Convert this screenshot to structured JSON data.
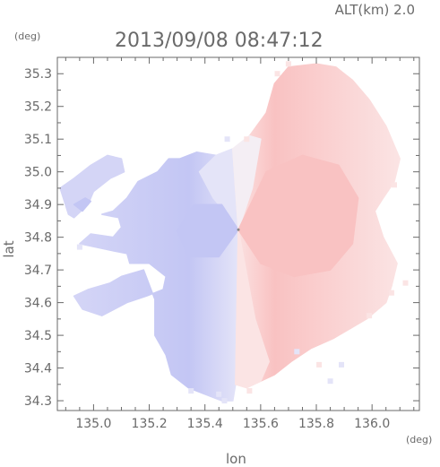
{
  "header": {
    "altitude_label": "ALT(km) 2.0",
    "timestamp": "2013/09/08 08:47:12"
  },
  "axes": {
    "x_label": "lon",
    "y_label": "lat",
    "x_unit": "(deg)",
    "y_unit": "(deg)",
    "x_range": [
      134.87,
      136.17
    ],
    "y_range": [
      34.27,
      35.35
    ],
    "x_ticks": [
      {
        "value": 135.0,
        "label": "135.0"
      },
      {
        "value": 135.2,
        "label": "135.2"
      },
      {
        "value": 135.4,
        "label": "135.4"
      },
      {
        "value": 135.6,
        "label": "135.6"
      },
      {
        "value": 135.8,
        "label": "135.8"
      },
      {
        "value": 136.0,
        "label": "136.0"
      }
    ],
    "y_ticks": [
      {
        "value": 34.3,
        "label": "34.3"
      },
      {
        "value": 34.4,
        "label": "34.4"
      },
      {
        "value": 34.5,
        "label": "34.5"
      },
      {
        "value": 34.6,
        "label": "34.6"
      },
      {
        "value": 34.7,
        "label": "34.7"
      },
      {
        "value": 34.8,
        "label": "34.8"
      },
      {
        "value": 34.9,
        "label": "34.9"
      },
      {
        "value": 35.0,
        "label": "35.0"
      },
      {
        "value": 35.1,
        "label": "35.1"
      },
      {
        "value": 35.2,
        "label": "35.2"
      },
      {
        "value": 35.3,
        "label": "35.3"
      }
    ],
    "minor_tick_step": 0.05
  },
  "radar": {
    "center": {
      "lon": 135.52,
      "lat": 34.823
    },
    "colors": {
      "approaching_strong": "#c3c6f4",
      "approaching_weak": "#e4e4f8",
      "receding_strong": "#f9c2c2",
      "receding_weak": "#fbe4e4",
      "axis": "#6a6a6a"
    },
    "west_region": [
      [
        135.5,
        35.07
      ],
      [
        135.44,
        35.05
      ],
      [
        135.37,
        35.06
      ],
      [
        135.31,
        35.04
      ],
      [
        135.27,
        35.04
      ],
      [
        135.23,
        35.0
      ],
      [
        135.16,
        34.97
      ],
      [
        135.12,
        34.92
      ],
      [
        135.07,
        34.88
      ],
      [
        135.03,
        34.87
      ],
      [
        135.09,
        34.86
      ],
      [
        135.1,
        34.83
      ],
      [
        135.07,
        34.8
      ],
      [
        134.99,
        34.81
      ],
      [
        134.95,
        34.78
      ],
      [
        135.06,
        34.76
      ],
      [
        135.12,
        34.75
      ],
      [
        135.13,
        34.72
      ],
      [
        135.2,
        34.72
      ],
      [
        135.26,
        34.68
      ],
      [
        135.25,
        34.64
      ],
      [
        135.19,
        34.62
      ],
      [
        135.12,
        34.6
      ],
      [
        135.03,
        34.56
      ],
      [
        134.96,
        34.58
      ],
      [
        134.93,
        34.62
      ],
      [
        134.98,
        34.64
      ],
      [
        135.06,
        34.66
      ],
      [
        135.1,
        34.68
      ],
      [
        135.18,
        34.7
      ],
      [
        135.22,
        34.61
      ],
      [
        135.22,
        34.5
      ],
      [
        135.26,
        34.44
      ],
      [
        135.28,
        34.38
      ],
      [
        135.34,
        34.34
      ],
      [
        135.4,
        34.32
      ],
      [
        135.46,
        34.3
      ],
      [
        135.5,
        34.3
      ],
      [
        135.51,
        34.35
      ],
      [
        135.52,
        34.823
      ]
    ],
    "west_region_upper_shade": [
      [
        135.52,
        34.823
      ],
      [
        135.5,
        35.07
      ],
      [
        135.44,
        35.05
      ],
      [
        135.38,
        35.0
      ],
      [
        135.43,
        34.92
      ],
      [
        135.49,
        34.86
      ]
    ],
    "west_region_center_shade": [
      [
        135.52,
        34.823
      ],
      [
        135.46,
        34.9
      ],
      [
        135.36,
        34.9
      ],
      [
        135.3,
        34.82
      ],
      [
        135.34,
        34.74
      ],
      [
        135.45,
        34.74
      ]
    ],
    "west_arm": [
      [
        134.88,
        34.95
      ],
      [
        134.93,
        34.98
      ],
      [
        134.99,
        35.02
      ],
      [
        135.05,
        35.05
      ],
      [
        135.1,
        35.04
      ],
      [
        135.11,
        35.0
      ],
      [
        135.06,
        34.98
      ],
      [
        135.0,
        34.94
      ],
      [
        134.98,
        34.9
      ],
      [
        134.93,
        34.86
      ],
      [
        134.91,
        34.87
      ]
    ],
    "west_arm_tip": [
      [
        134.93,
        34.9
      ],
      [
        134.97,
        34.92
      ],
      [
        134.99,
        34.91
      ],
      [
        134.96,
        34.88
      ]
    ],
    "east_region": [
      [
        135.52,
        34.823
      ],
      [
        135.5,
        35.07
      ],
      [
        135.56,
        35.11
      ],
      [
        135.62,
        35.18
      ],
      [
        135.65,
        35.27
      ],
      [
        135.7,
        35.32
      ],
      [
        135.8,
        35.33
      ],
      [
        135.87,
        35.32
      ],
      [
        135.93,
        35.28
      ],
      [
        135.99,
        35.22
      ],
      [
        136.05,
        35.14
      ],
      [
        136.1,
        35.04
      ],
      [
        136.08,
        34.97
      ],
      [
        136.04,
        34.92
      ],
      [
        136.01,
        34.88
      ],
      [
        136.04,
        34.8
      ],
      [
        136.09,
        34.72
      ],
      [
        136.07,
        34.65
      ],
      [
        136.05,
        34.6
      ],
      [
        135.98,
        34.55
      ],
      [
        135.92,
        34.52
      ],
      [
        135.86,
        34.49
      ],
      [
        135.78,
        34.46
      ],
      [
        135.71,
        34.42
      ],
      [
        135.65,
        34.38
      ],
      [
        135.6,
        34.36
      ],
      [
        135.55,
        34.34
      ],
      [
        135.51,
        34.35
      ]
    ],
    "east_weak_band": [
      [
        135.52,
        34.823
      ],
      [
        135.51,
        34.35
      ],
      [
        135.55,
        34.34
      ],
      [
        135.6,
        34.36
      ],
      [
        135.63,
        34.42
      ],
      [
        135.58,
        34.55
      ]
    ],
    "east_weak_band_upper": [
      [
        135.52,
        34.823
      ],
      [
        135.5,
        35.07
      ],
      [
        135.56,
        35.11
      ],
      [
        135.6,
        35.1
      ],
      [
        135.57,
        34.95
      ]
    ],
    "east_strong_core": [
      [
        135.52,
        34.823
      ],
      [
        135.62,
        35.0
      ],
      [
        135.75,
        35.05
      ],
      [
        135.88,
        35.02
      ],
      [
        135.95,
        34.92
      ],
      [
        135.93,
        34.78
      ],
      [
        135.85,
        34.7
      ],
      [
        135.72,
        34.68
      ],
      [
        135.6,
        34.72
      ]
    ],
    "bottom_cells": [
      {
        "lon": 135.35,
        "lat": 34.33,
        "tone": "approaching_weak"
      },
      {
        "lon": 135.45,
        "lat": 34.32,
        "tone": "approaching_weak"
      },
      {
        "lon": 135.56,
        "lat": 34.33,
        "tone": "receding_weak"
      },
      {
        "lon": 135.47,
        "lat": 34.3,
        "tone": "approaching_weak"
      },
      {
        "lon": 135.85,
        "lat": 34.36,
        "tone": "approaching_weak"
      },
      {
        "lon": 135.81,
        "lat": 34.41,
        "tone": "receding_weak"
      },
      {
        "lon": 135.89,
        "lat": 34.41,
        "tone": "approaching_weak"
      },
      {
        "lon": 135.73,
        "lat": 34.45,
        "tone": "approaching_weak"
      },
      {
        "lon": 135.99,
        "lat": 34.56,
        "tone": "receding_weak"
      },
      {
        "lon": 136.07,
        "lat": 34.63,
        "tone": "receding_weak"
      },
      {
        "lon": 136.12,
        "lat": 34.66,
        "tone": "receding_weak"
      },
      {
        "lon": 136.08,
        "lat": 34.96,
        "tone": "receding_weak"
      },
      {
        "lon": 135.55,
        "lat": 35.1,
        "tone": "receding_weak"
      },
      {
        "lon": 135.48,
        "lat": 35.1,
        "tone": "approaching_weak"
      },
      {
        "lon": 135.66,
        "lat": 35.3,
        "tone": "receding_weak"
      },
      {
        "lon": 135.7,
        "lat": 35.33,
        "tone": "receding_weak"
      },
      {
        "lon": 134.95,
        "lat": 34.77,
        "tone": "approaching_weak"
      }
    ]
  }
}
